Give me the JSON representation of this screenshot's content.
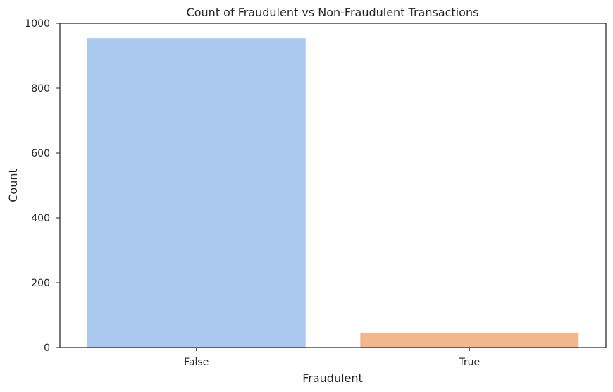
{
  "chart_data": {
    "type": "bar",
    "title": "Count of Fraudulent vs Non-Fraudulent Transactions",
    "xlabel": "Fraudulent",
    "ylabel": "Count",
    "categories": [
      "False",
      "True"
    ],
    "values": [
      954,
      46
    ],
    "colors": [
      "#abc9ee",
      "#f2b78f"
    ],
    "ylim": [
      0,
      1000
    ],
    "yticks": [
      0,
      200,
      400,
      600,
      800,
      1000
    ],
    "grid": false,
    "legend": "none"
  }
}
